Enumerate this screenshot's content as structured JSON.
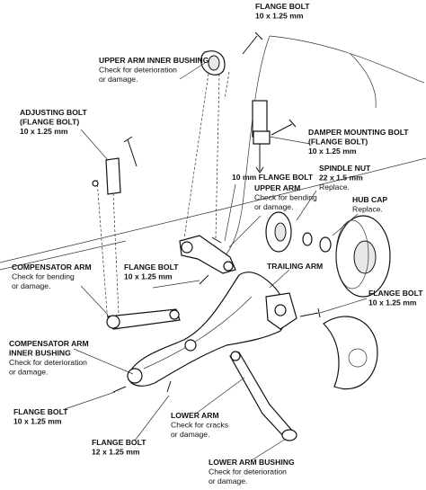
{
  "labels": [
    {
      "title": [
        "FLANGE BOLT",
        "10 x 1.25 mm"
      ],
      "note": []
    },
    {
      "title": [
        "UPPER ARM INNER BUSHING"
      ],
      "note": [
        "Check for deterioration",
        "or damage."
      ]
    },
    {
      "title": [
        "ADJUSTING BOLT",
        "(FLANGE BOLT)",
        "10 x 1.25 mm"
      ],
      "note": []
    },
    {
      "title": [
        "DAMPER MOUNTING BOLT",
        "(FLANGE BOLT)",
        "10 x 1.25 mm"
      ],
      "note": []
    },
    {
      "title": [
        "SPINDLE NUT",
        "22 x 1.5 mm"
      ],
      "note": [
        "Replace."
      ]
    },
    {
      "title": [
        "10 mm FLANGE BOLT"
      ],
      "note": []
    },
    {
      "title": [
        "UPPER ARM"
      ],
      "note": [
        "Check for bending",
        "or damage."
      ]
    },
    {
      "title": [
        "HUB CAP"
      ],
      "note": [
        "Replace."
      ]
    },
    {
      "title": [
        "COMPENSATOR ARM"
      ],
      "note": [
        "Check for bending",
        "or damage."
      ]
    },
    {
      "title": [
        "FLANGE BOLT",
        "10 x 1.25 mm"
      ],
      "note": []
    },
    {
      "title": [
        "TRAILING ARM"
      ],
      "note": []
    },
    {
      "title": [
        "FLANGE BOLT",
        "10 x 1.25 mm"
      ],
      "note": []
    },
    {
      "title": [
        "COMPENSATOR ARM",
        "INNER BUSHING"
      ],
      "note": [
        "Check for deterioration",
        "or damage."
      ]
    },
    {
      "title": [
        "FLANGE BOLT",
        "10 x 1.25 mm"
      ],
      "note": []
    },
    {
      "title": [
        "LOWER ARM"
      ],
      "note": [
        "Check for cracks",
        "or damage."
      ]
    },
    {
      "title": [
        "FLANGE BOLT",
        "12 x 1.25 mm"
      ],
      "note": []
    },
    {
      "title": [
        "LOWER ARM BUSHING"
      ],
      "note": [
        "Check for deterioration",
        "or damage."
      ]
    }
  ]
}
